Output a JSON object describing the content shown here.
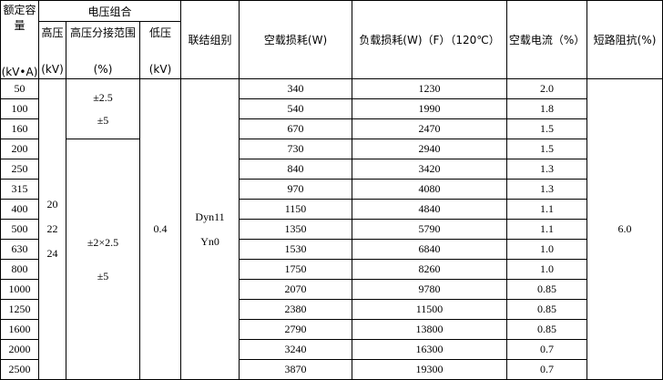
{
  "table": {
    "header": {
      "capacity": [
        "额定容量",
        "(kV•A)"
      ],
      "voltage_group": "电压组合",
      "hv": [
        "高压",
        "(kV)"
      ],
      "tap": [
        "高压分接范围",
        "(%)"
      ],
      "lv": [
        "低压",
        "(kV)"
      ],
      "connection": "联结组别",
      "no_load_loss": "空载损耗(W)",
      "load_loss": "负载损耗(W)（F）（120℃）",
      "no_load_current": "空载电流（%）",
      "impedance": "短路阻抗(%)"
    },
    "capacity": [
      50,
      100,
      160,
      200,
      250,
      315,
      400,
      500,
      630,
      800,
      1000,
      1250,
      1600,
      2000,
      2500
    ],
    "hv": [
      20,
      22,
      24
    ],
    "tap": [
      [
        "±2.5",
        "±5"
      ],
      [
        "±2×2.5",
        "±5"
      ]
    ],
    "lv": "0.4",
    "connection": [
      "Dyn11",
      "Yn0"
    ],
    "no_load_loss": [
      340,
      540,
      670,
      730,
      840,
      970,
      1150,
      1350,
      1530,
      1750,
      2070,
      2380,
      2790,
      3240,
      3870
    ],
    "load_loss": [
      1230,
      1990,
      2470,
      2940,
      3420,
      4080,
      4840,
      5790,
      6840,
      8260,
      9780,
      11500,
      13800,
      16300,
      19300
    ],
    "no_load_current": [
      "2.0",
      "1.8",
      "1.5",
      "1.5",
      "1.3",
      "1.3",
      "1.1",
      "1.1",
      "1.0",
      "1.0",
      "0.85",
      "0.85",
      "0.85",
      "0.7",
      "0.7"
    ],
    "impedance": "6.0"
  }
}
